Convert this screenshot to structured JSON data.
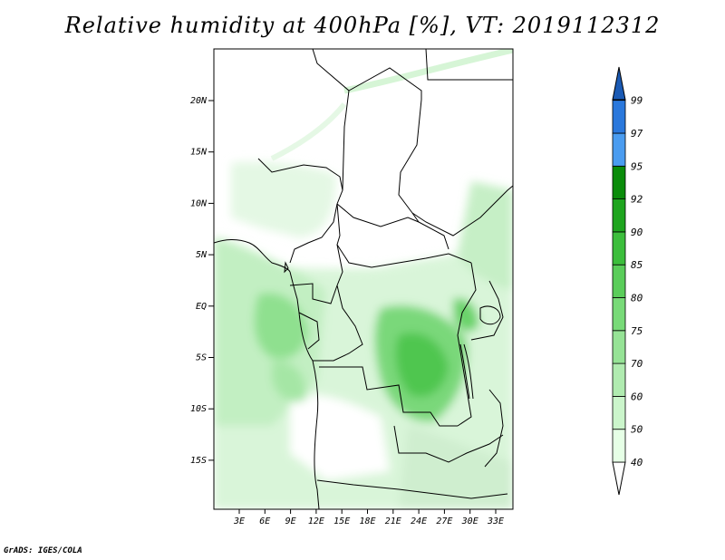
{
  "title": "Relative humidity at 400hPa [%], VT: 2019112312",
  "footer": "GrADS: IGES/COLA",
  "map": {
    "lat_labels": [
      "20N",
      "15N",
      "10N",
      "5N",
      "EQ",
      "5S",
      "10S",
      "15S"
    ],
    "lon_labels": [
      "3E",
      "6E",
      "9E",
      "12E",
      "15E",
      "18E",
      "21E",
      "24E",
      "27E",
      "30E",
      "33E"
    ]
  },
  "colorbar": {
    "levels": [
      "40",
      "50",
      "60",
      "70",
      "75",
      "80",
      "85",
      "90",
      "92",
      "95",
      "97",
      "99"
    ],
    "colors": [
      "#ffffff",
      "#e6ffe6",
      "#cbf5cb",
      "#b0ebb0",
      "#96e396",
      "#78da78",
      "#5acd5a",
      "#3cbe3c",
      "#1ea51e",
      "#0a8c0a",
      "#4a9cf0",
      "#2a78dc",
      "#1a5ab4"
    ]
  }
}
